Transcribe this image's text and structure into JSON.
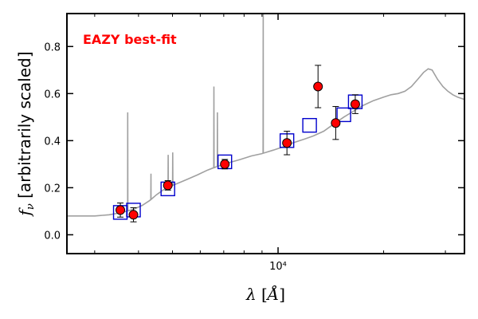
{
  "chart_data": {
    "type": "scatter",
    "title": "",
    "annotation": "EAZY best-fit",
    "xlabel": "λ [Å]",
    "ylabel": "f_ν [arbitrarily scaled]",
    "xscale": "log",
    "xlim": [
      2500,
      34000
    ],
    "ylim": [
      -0.08,
      0.94
    ],
    "yticks": [
      0.0,
      0.2,
      0.4,
      0.6,
      0.8
    ],
    "ytick_labels": [
      "0.0",
      "0.2",
      "0.4",
      "0.6",
      "0.8"
    ],
    "xticks": [
      10000
    ],
    "xtick_labels": [
      "10⁴"
    ],
    "grid": false,
    "colors": {
      "model": "#a0a0a0",
      "photometry": "#ff0000",
      "model_photometry": "#0000cc"
    },
    "sed_model": {
      "x": [
        2500,
        3000,
        3300,
        3600,
        3900,
        4100,
        4300,
        4500,
        4700,
        4900,
        5200,
        5500,
        5900,
        6300,
        6700,
        7200,
        7800,
        8400,
        9000,
        9700,
        10400,
        11000,
        11800,
        12600,
        13500,
        14400,
        15400,
        16400,
        17500,
        18700,
        20000,
        21000,
        22000,
        23000,
        24000,
        25000,
        26000,
        26800,
        27500,
        28500,
        29500,
        30500,
        31500,
        32500,
        34000
      ],
      "y": [
        0.08,
        0.08,
        0.085,
        0.095,
        0.11,
        0.125,
        0.145,
        0.17,
        0.19,
        0.205,
        0.22,
        0.235,
        0.255,
        0.275,
        0.29,
        0.305,
        0.32,
        0.335,
        0.345,
        0.36,
        0.375,
        0.39,
        0.405,
        0.42,
        0.44,
        0.47,
        0.5,
        0.525,
        0.55,
        0.57,
        0.585,
        0.595,
        0.6,
        0.61,
        0.63,
        0.66,
        0.69,
        0.705,
        0.7,
        0.66,
        0.63,
        0.61,
        0.595,
        0.585,
        0.575
      ]
    },
    "emission_lines": [
      {
        "x": 3727,
        "y": 0.52
      },
      {
        "x": 4340,
        "y": 0.26
      },
      {
        "x": 4861,
        "y": 0.34
      },
      {
        "x": 5007,
        "y": 0.35
      },
      {
        "x": 6563,
        "y": 0.63
      },
      {
        "x": 6716,
        "y": 0.52
      },
      {
        "x": 9069,
        "y": 0.95
      }
    ],
    "series": [
      {
        "type": "observed",
        "x": [
          3550,
          3870,
          4850,
          7050,
          10600,
          13000,
          14600,
          16600
        ],
        "y": [
          0.105,
          0.085,
          0.21,
          0.3,
          0.39,
          0.63,
          0.475,
          0.555
        ],
        "yerr": [
          0.03,
          0.03,
          0.02,
          0.02,
          0.05,
          0.09,
          0.07,
          0.04
        ]
      },
      {
        "type": "model",
        "x": [
          3550,
          3870,
          4850,
          7050,
          10600,
          12300,
          15400,
          16600
        ],
        "y": [
          0.095,
          0.105,
          0.195,
          0.31,
          0.4,
          0.465,
          0.51,
          0.565
        ]
      }
    ]
  }
}
